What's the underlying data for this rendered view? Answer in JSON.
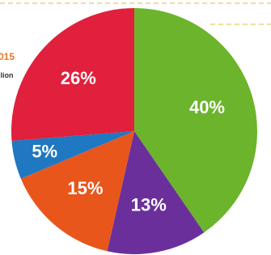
{
  "chart_data": {
    "type": "pie",
    "categories": [
      null,
      null,
      null,
      null,
      null
    ],
    "values": [
      40,
      13,
      15,
      5,
      26
    ],
    "value_labels": [
      "40%",
      "13%",
      "15%",
      "5%",
      "26%"
    ],
    "colors": [
      "#6cb42c",
      "#6b2f9c",
      "#e9561c",
      "#1f78c1",
      "#e0203c"
    ],
    "annotations": [
      "015",
      "llion"
    ]
  }
}
